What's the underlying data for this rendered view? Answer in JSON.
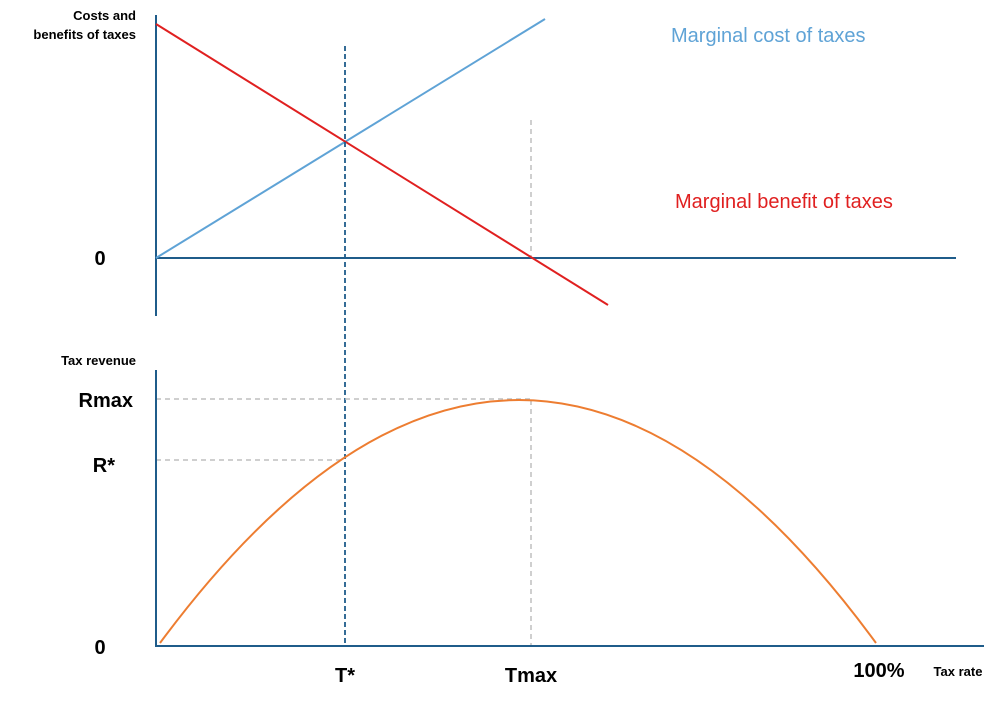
{
  "top_panel": {
    "y_axis_label_line1": "Costs and",
    "y_axis_label_line2": "benefits of taxes",
    "zero_label": "0",
    "marginal_cost_label": "Marginal cost of taxes",
    "marginal_benefit_label": "Marginal benefit of taxes"
  },
  "bottom_panel": {
    "y_axis_label": "Tax revenue",
    "rmax_label": "Rmax",
    "rstar_label": "R*",
    "zero_label": "0",
    "x_axis_label": "Tax rate",
    "tstar_label": "T*",
    "tmax_label": "Tmax",
    "hundred_label": "100%"
  },
  "colors": {
    "axis": "#1f5c8a",
    "marginal_cost": "#5fa3d6",
    "marginal_benefit": "#e02020",
    "revenue_curve": "#ed7d31",
    "tstar_line": "#1f5c8a",
    "guide_lines": "#bfbfbf"
  }
}
